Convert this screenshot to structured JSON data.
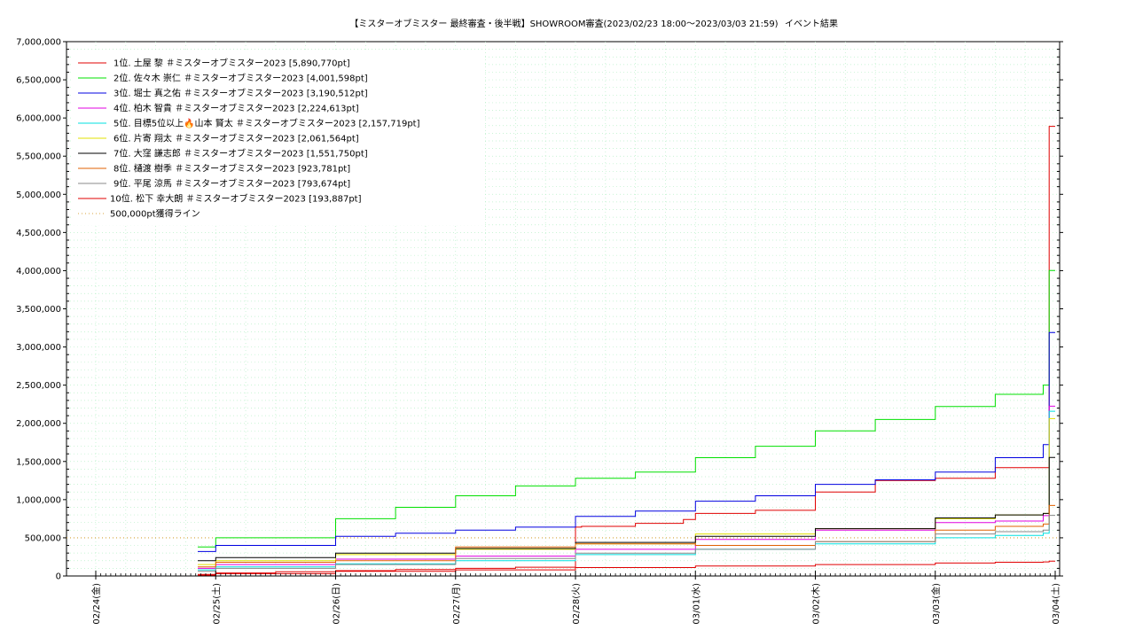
{
  "chart_data": {
    "type": "line",
    "title": "【ミスターオブミスター 最終審査・後半戦】SHOWROOM審査(2023/02/23 18:00～2023/03/03 21:59)",
    "subtitle": "イベント結果",
    "xlabel": "",
    "ylabel": "",
    "x_ticks": [
      "02/24(金)",
      "02/25(土)",
      "02/26(日)",
      "02/27(月)",
      "02/28(火)",
      "03/01(水)",
      "03/02(木)",
      "03/03(金)",
      "03/04(土)"
    ],
    "xlim_days": [
      0,
      8
    ],
    "ylim": [
      0,
      7000000
    ],
    "y_ticks": [
      "0",
      "500,000",
      "1,000,000",
      "1,500,000",
      "2,000,000",
      "2,500,000",
      "3,000,000",
      "3,500,000",
      "4,000,000",
      "4,500,000",
      "5,000,000",
      "5,500,000",
      "6,000,000",
      "6,500,000",
      "7,000,000"
    ],
    "y_tick_values": [
      0,
      500000,
      1000000,
      1500000,
      2000000,
      2500000,
      3000000,
      3500000,
      4000000,
      4500000,
      5000000,
      5500000,
      6000000,
      6500000,
      7000000
    ],
    "grid": true,
    "legend_position": "top-left",
    "series": [
      {
        "name": "1位. 土屋 黎 ＃ミスターオブミスター2023 [5,890,770pt]",
        "color": "#e00000",
        "x": [
          0.85,
          1.0,
          1.5,
          2.0,
          2.5,
          3.0,
          3.5,
          4.0,
          4.05,
          4.5,
          4.9,
          5.0,
          5.5,
          6.0,
          6.5,
          7.0,
          7.5,
          7.9,
          7.95,
          8.0
        ],
        "y": [
          20000,
          40000,
          55000,
          70000,
          85000,
          100000,
          115000,
          640000,
          650000,
          690000,
          740000,
          820000,
          860000,
          1100000,
          1250000,
          1280000,
          1420000,
          1420000,
          5890770,
          5890770
        ]
      },
      {
        "name": "2位. 佐々木 崇仁 ＃ミスターオブミスター2023 [4,001,598pt]",
        "color": "#00e000",
        "x": [
          0.85,
          1.0,
          2.0,
          2.5,
          3.0,
          3.5,
          4.0,
          4.5,
          5.0,
          5.5,
          6.0,
          6.5,
          7.0,
          7.5,
          7.9,
          7.95,
          8.0
        ],
        "y": [
          380000,
          500000,
          750000,
          900000,
          1050000,
          1180000,
          1280000,
          1360000,
          1550000,
          1700000,
          1900000,
          2050000,
          2220000,
          2380000,
          2500000,
          4001598,
          4001598
        ]
      },
      {
        "name": "3位. 堀士 真之佑 ＃ミスターオブミスター2023 [3,190,512pt]",
        "color": "#0000e0",
        "x": [
          0.85,
          1.0,
          2.0,
          2.5,
          3.0,
          3.5,
          4.0,
          4.5,
          5.0,
          5.5,
          6.0,
          6.5,
          7.0,
          7.5,
          7.9,
          7.95,
          8.0
        ],
        "y": [
          320000,
          400000,
          520000,
          560000,
          600000,
          640000,
          780000,
          850000,
          980000,
          1050000,
          1200000,
          1260000,
          1360000,
          1550000,
          1720000,
          3190512,
          3190512
        ]
      },
      {
        "name": "4位. 柏木 智貴 ＃ミスターオブミスター2023 [2,224,613pt]",
        "color": "#e000e0",
        "x": [
          0.85,
          1.0,
          2.0,
          3.0,
          4.0,
          5.0,
          6.0,
          7.0,
          7.5,
          7.9,
          7.95,
          8.0
        ],
        "y": [
          100000,
          150000,
          220000,
          260000,
          350000,
          480000,
          600000,
          700000,
          720000,
          790000,
          2224613,
          2224613
        ]
      },
      {
        "name": "5位. 目標5位以上🔥山本 賢太 ＃ミスターオブミスター2023 [2,157,719pt]",
        "color": "#00e0e0",
        "x": [
          0.85,
          1.0,
          2.0,
          3.0,
          4.0,
          5.0,
          6.0,
          7.0,
          7.5,
          7.9,
          7.95,
          8.0
        ],
        "y": [
          80000,
          120000,
          160000,
          200000,
          280000,
          350000,
          420000,
          500000,
          530000,
          560000,
          2157719,
          2157719
        ]
      },
      {
        "name": "6位. 片寄 翔太 ＃ミスターオブミスター2023 [2,061,564pt]",
        "color": "#e0e000",
        "x": [
          0.85,
          1.0,
          2.0,
          3.0,
          4.0,
          5.0,
          6.0,
          7.0,
          7.5,
          7.9,
          7.95,
          8.0
        ],
        "y": [
          150000,
          200000,
          280000,
          350000,
          420000,
          550000,
          620000,
          750000,
          800000,
          820000,
          2061564,
          2061564
        ]
      },
      {
        "name": "7位. 大窪 謙志郎 ＃ミスターオブミスター2023 [1,551,750pt]",
        "color": "#000000",
        "x": [
          0.85,
          1.0,
          2.0,
          3.0,
          4.0,
          5.0,
          6.0,
          7.0,
          7.5,
          7.9,
          7.95,
          8.0
        ],
        "y": [
          200000,
          240000,
          300000,
          360000,
          440000,
          520000,
          620000,
          760000,
          800000,
          820000,
          1551750,
          1551750
        ]
      },
      {
        "name": "8位. 樋渡 樹季 ＃ミスターオブミスター2023 [923,781pt]",
        "color": "#e06000",
        "x": [
          0.85,
          1.0,
          2.0,
          3.0,
          4.0,
          5.0,
          6.0,
          7.0,
          7.5,
          7.9,
          7.95,
          8.0
        ],
        "y": [
          120000,
          180000,
          200000,
          380000,
          420000,
          400000,
          450000,
          600000,
          650000,
          680000,
          923781,
          923781
        ]
      },
      {
        "name": "9位. 平尾 涼馬 ＃ミスターオブミスター2023 [793,674pt]",
        "color": "#888888",
        "x": [
          0.85,
          1.0,
          2.0,
          3.0,
          4.0,
          5.0,
          6.0,
          7.0,
          7.5,
          7.9,
          7.95,
          8.0
        ],
        "y": [
          60000,
          100000,
          150000,
          230000,
          300000,
          350000,
          450000,
          550000,
          580000,
          600000,
          793674,
          793674
        ]
      },
      {
        "name": "10位. 松下 幸大朗 ＃ミスターオブミスター2023 [193,887pt]",
        "color": "#e00000",
        "x": [
          0.85,
          1.0,
          2.0,
          3.0,
          4.0,
          5.0,
          6.0,
          7.0,
          7.5,
          7.9,
          7.95,
          8.0
        ],
        "y": [
          10000,
          30000,
          60000,
          80000,
          110000,
          130000,
          150000,
          170000,
          180000,
          185000,
          193887,
          193887
        ]
      }
    ],
    "reference_line": {
      "name": "500,000pt獲得ライン",
      "value": 500000,
      "color": "#cc8800"
    }
  }
}
